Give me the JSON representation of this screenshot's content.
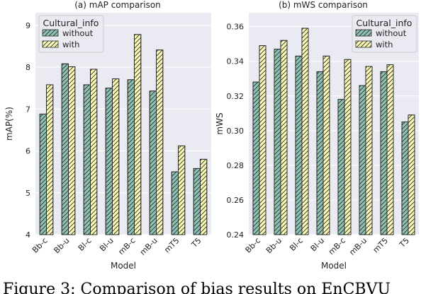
{
  "figure": {
    "caption_visible": "Figure 3: Comparison of bias results on EnCBVU"
  },
  "chart_data": [
    {
      "type": "bar",
      "title": "(a) mAP comparison",
      "xlabel": "Model",
      "ylabel": "mAP(%)",
      "categories": [
        "Bb-c",
        "Bb-u",
        "Bl-c",
        "Bl-u",
        "mB-c",
        "mB-u",
        "mT5",
        "T5"
      ],
      "ylim": [
        4,
        9.3
      ],
      "yticks": [
        4,
        5,
        6,
        7,
        8,
        9
      ],
      "ytick_labels": [
        "4",
        "5",
        "6",
        "7",
        "8",
        "9"
      ],
      "grid": true,
      "legend": {
        "title": "Cultural_info",
        "placement": "top-left"
      },
      "series": [
        {
          "name": "without",
          "values": [
            6.88,
            8.08,
            7.58,
            7.5,
            7.7,
            7.43,
            5.5,
            5.58
          ],
          "color": "#8ec3b3"
        },
        {
          "name": "with",
          "values": [
            7.58,
            8.01,
            7.95,
            7.72,
            8.78,
            8.41,
            6.12,
            5.8
          ],
          "color": "#fbfab7"
        }
      ]
    },
    {
      "type": "bar",
      "title": "(b) mWS comparison",
      "xlabel": "Model",
      "ylabel": "mWS",
      "categories": [
        "Bb-c",
        "Bb-u",
        "Bl-c",
        "Bl-u",
        "mB-c",
        "mB-u",
        "mT5",
        "T5"
      ],
      "ylim": [
        0.24,
        0.368
      ],
      "yticks": [
        0.24,
        0.26,
        0.28,
        0.3,
        0.32,
        0.34,
        0.36
      ],
      "ytick_labels": [
        "0.24",
        "0.26",
        "0.28",
        "0.30",
        "0.32",
        "0.34",
        "0.36"
      ],
      "grid": true,
      "legend": {
        "title": "Cultural_info",
        "placement": "top-right"
      },
      "series": [
        {
          "name": "without",
          "values": [
            0.328,
            0.347,
            0.343,
            0.334,
            0.318,
            0.326,
            0.334,
            0.305
          ],
          "color": "#8ec3b3"
        },
        {
          "name": "with",
          "values": [
            0.349,
            0.352,
            0.359,
            0.343,
            0.341,
            0.337,
            0.338,
            0.309
          ],
          "color": "#fbfab7"
        }
      ]
    }
  ],
  "colors": {
    "plot_bg": "#eaeaf2",
    "grid": "#ffffff",
    "edge": "#2a2a2a"
  }
}
